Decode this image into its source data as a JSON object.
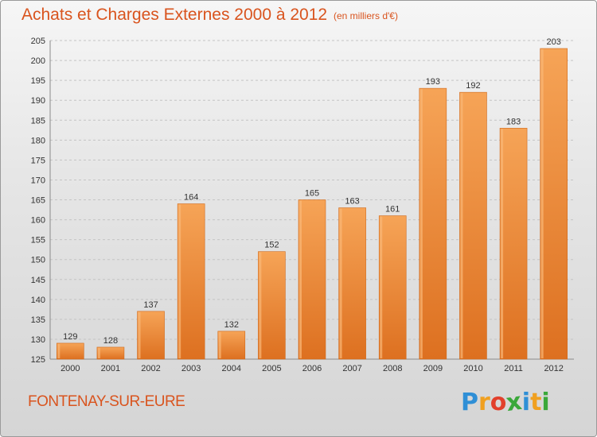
{
  "chart_data": {
    "type": "bar",
    "title": "Achats et Charges Externes 2000 à 2012",
    "subtitle": "(en milliers d'€)",
    "categories": [
      "2000",
      "2001",
      "2002",
      "2003",
      "2004",
      "2005",
      "2006",
      "2007",
      "2008",
      "2009",
      "2010",
      "2011",
      "2012"
    ],
    "values": [
      129,
      128,
      137,
      164,
      132,
      152,
      165,
      163,
      161,
      193,
      192,
      183,
      203
    ],
    "ylim": [
      125,
      205
    ],
    "yticks": [
      125,
      130,
      135,
      140,
      145,
      150,
      155,
      160,
      165,
      170,
      175,
      180,
      185,
      190,
      195,
      200,
      205
    ],
    "xlabel": "",
    "ylabel": "",
    "grid": true,
    "bar_color": "#f08a35"
  },
  "commune": "FONTENAY-SUR-EURE",
  "logo": {
    "letters": [
      "P",
      "r",
      "o",
      "x",
      "i",
      "t",
      "i"
    ],
    "colors": [
      "#2f8fd6",
      "#f0a020",
      "#e2402c",
      "#3aa83a",
      "#2f8fd6",
      "#f0a020",
      "#3aa83a"
    ]
  }
}
